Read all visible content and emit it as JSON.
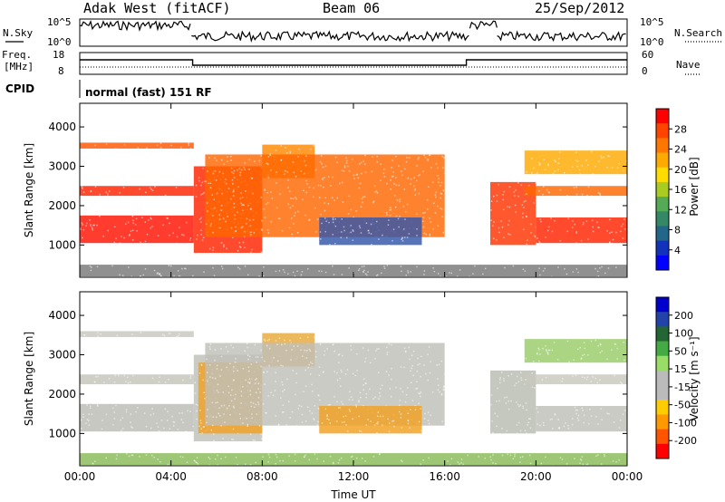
{
  "header": {
    "station": "Adak West (fitACF)",
    "beam": "Beam 06",
    "date": "25/Sep/2012"
  },
  "param_labels": {
    "nsky": "N.Sky",
    "nsearch": "N.Search",
    "freq_top": "Freq.",
    "freq_unit": "[MHz]",
    "nave": "Nave",
    "cpid": "CPID",
    "cpid_value": "normal (fast) 151 RF"
  },
  "chart_data": [
    {
      "type": "line",
      "name": "noise-panel",
      "y_left_ticks": [
        "10^5",
        "10^0"
      ],
      "y_right_ticks": [
        "10^5",
        "10^0"
      ],
      "x_range": [
        0,
        24
      ],
      "segments": [
        {
          "x": [
            0,
            4.9
          ],
          "level": "high",
          "noisy": true
        },
        {
          "x": [
            4.9,
            17.1
          ],
          "level": "low",
          "noisy": true
        },
        {
          "x": [
            17.1,
            18.3
          ],
          "level": "high",
          "noisy": true
        },
        {
          "x": [
            18.3,
            24
          ],
          "level": "low",
          "noisy": true
        }
      ]
    },
    {
      "type": "line",
      "name": "frequency-nave-panel",
      "y_left_ticks": [
        "18",
        "8"
      ],
      "y_right_ticks": [
        "60",
        "0"
      ],
      "x_range": [
        0,
        24
      ],
      "freq_steps": [
        {
          "x": [
            0,
            4.95
          ],
          "level": "high"
        },
        {
          "x": [
            4.95,
            16.95
          ],
          "level": "low"
        },
        {
          "x": [
            16.95,
            24
          ],
          "level": "high"
        }
      ]
    },
    {
      "type": "heatmap",
      "name": "power-panel",
      "ylabel": "Slant Range [km]",
      "yticks": [
        1000,
        2000,
        3000,
        4000
      ],
      "ylim": [
        180,
        4600
      ],
      "x_range": [
        0,
        24
      ],
      "colorbar": {
        "label": "Power [dB]",
        "ticks": [
          "28",
          "24",
          "20",
          "16",
          "12",
          "8",
          "4"
        ],
        "colors": [
          "#ff0000",
          "#ff4400",
          "#ff7700",
          "#ffaa00",
          "#ffdd00",
          "#aacc22",
          "#55aa55",
          "#338866",
          "#226688",
          "#1133bb",
          "#0000ff"
        ]
      },
      "bands": [
        {
          "x": [
            0,
            5
          ],
          "r0": 1050,
          "r1": 1750,
          "color": "#ff1100"
        },
        {
          "x": [
            0,
            5
          ],
          "r0": 2250,
          "r1": 2500,
          "color": "#ff2200"
        },
        {
          "x": [
            0,
            5
          ],
          "r0": 3450,
          "r1": 3600,
          "color": "#ff5500"
        },
        {
          "x": [
            5,
            8
          ],
          "r0": 800,
          "r1": 3000,
          "color": "#ff2200"
        },
        {
          "x": [
            8,
            10.3
          ],
          "r0": 2700,
          "r1": 3550,
          "color": "#ff8800"
        },
        {
          "x": [
            5.5,
            16
          ],
          "r0": 1200,
          "r1": 3300,
          "color": "#ff6600"
        },
        {
          "x": [
            10.5,
            15
          ],
          "r0": 1000,
          "r1": 1700,
          "color": "#3355aa"
        },
        {
          "x": [
            18,
            20
          ],
          "r0": 1000,
          "r1": 2600,
          "color": "#ff3300"
        },
        {
          "x": [
            20,
            24
          ],
          "r0": 1050,
          "r1": 1700,
          "color": "#ff2200"
        },
        {
          "x": [
            19.5,
            24
          ],
          "r0": 2250,
          "r1": 2500,
          "color": "#ff6600"
        },
        {
          "x": [
            19.5,
            24
          ],
          "r0": 2800,
          "r1": 3400,
          "color": "#ffaa00"
        },
        {
          "x": [
            0,
            24
          ],
          "r0": 200,
          "r1": 500,
          "color": "#777777"
        }
      ]
    },
    {
      "type": "heatmap",
      "name": "velocity-panel",
      "ylabel": "Slant Range [km]",
      "yticks": [
        1000,
        2000,
        3000,
        4000
      ],
      "ylim": [
        180,
        4600
      ],
      "xlabel": "Time UT",
      "xticks": [
        "00:00",
        "04:00",
        "08:00",
        "12:00",
        "16:00",
        "20:00",
        "00:00"
      ],
      "xtick_hours": [
        0,
        4,
        8,
        12,
        16,
        20,
        24
      ],
      "x_range": [
        0,
        24
      ],
      "colorbar": {
        "label": "Velocity [m s⁻¹]",
        "ticks": [
          "200",
          "100",
          "50",
          "15",
          "-15",
          "-50",
          "-100",
          "-200"
        ],
        "colors": [
          "#0000cc",
          "#2244aa",
          "#226633",
          "#44aa44",
          "#99dd66",
          "#bbbbbb",
          "#bbbbbb",
          "#ffcc00",
          "#ff9900",
          "#ff5500",
          "#ff0000"
        ]
      },
      "bands": [
        {
          "x": [
            0,
            5
          ],
          "r0": 1050,
          "r1": 1750,
          "color": "#bcbcb4"
        },
        {
          "x": [
            0,
            5
          ],
          "r0": 2250,
          "r1": 2500,
          "color": "#c4c4bc"
        },
        {
          "x": [
            0,
            5
          ],
          "r0": 3450,
          "r1": 3600,
          "color": "#c8c8c0"
        },
        {
          "x": [
            5,
            8
          ],
          "r0": 800,
          "r1": 3000,
          "color": "#c0c0b8"
        },
        {
          "x": [
            5.2,
            8
          ],
          "r0": 1000,
          "r1": 2800,
          "color": "#f0a020"
        },
        {
          "x": [
            8,
            10.3
          ],
          "r0": 2700,
          "r1": 3550,
          "color": "#e8a838"
        },
        {
          "x": [
            5.5,
            16
          ],
          "r0": 1200,
          "r1": 3300,
          "color": "#c0c0b8"
        },
        {
          "x": [
            10.5,
            15
          ],
          "r0": 1000,
          "r1": 1700,
          "color": "#f0a020"
        },
        {
          "x": [
            18,
            20
          ],
          "r0": 1000,
          "r1": 2600,
          "color": "#b8bcb0"
        },
        {
          "x": [
            20,
            24
          ],
          "r0": 1050,
          "r1": 1700,
          "color": "#c0c0b8"
        },
        {
          "x": [
            19.5,
            24
          ],
          "r0": 2250,
          "r1": 2500,
          "color": "#c8c8c0"
        },
        {
          "x": [
            19.5,
            24
          ],
          "r0": 2800,
          "r1": 3400,
          "color": "#99cc66"
        },
        {
          "x": [
            0,
            24
          ],
          "r0": 200,
          "r1": 500,
          "color": "#88bb55"
        }
      ]
    }
  ]
}
